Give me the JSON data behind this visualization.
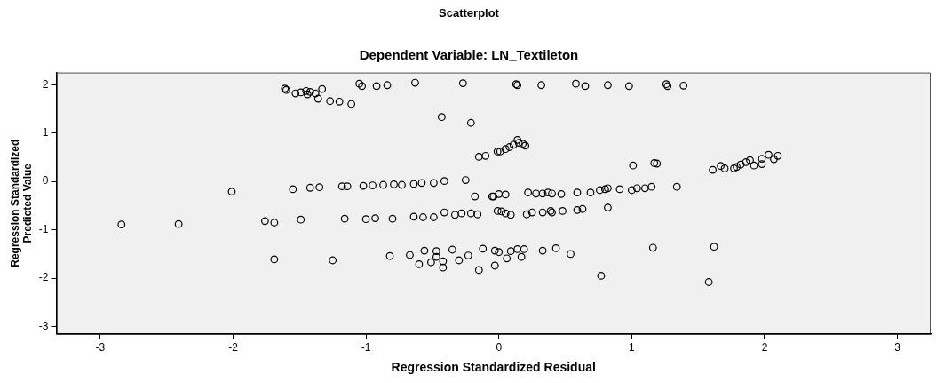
{
  "chart_data": {
    "type": "scatter",
    "title": "Scatterplot",
    "subtitle": "Dependent Variable: LN_Textileton",
    "xlabel": "Regression Standardized Residual",
    "ylabel": "Regression Standardized Predicted Value",
    "xlim": [
      -3.33,
      3.25
    ],
    "ylim": [
      -3.15,
      2.25
    ],
    "xticks": [
      -3,
      -2,
      -1,
      0,
      1,
      2,
      3
    ],
    "yticks": [
      -3,
      -2,
      -1,
      0,
      1,
      2
    ],
    "grid": false,
    "legend": false,
    "marker": "circle",
    "series": [
      {
        "color": "#000000",
        "x": [
          -1.61,
          -1.6,
          -1.53,
          -1.49,
          -1.45,
          -1.44,
          -1.42,
          -1.38,
          -1.36,
          -1.33,
          -1.27,
          -1.2,
          -1.11,
          -1.05,
          -1.03,
          -0.92,
          -0.84,
          -0.63,
          -0.27,
          -0.43,
          -0.21,
          -0.01,
          -0.15,
          -0.1,
          -2.01,
          -1.55,
          -1.42,
          -1.35,
          -1.18,
          -1.14,
          -1.02,
          -0.95,
          -0.87,
          -0.79,
          -0.73,
          -0.64,
          -0.58,
          -0.49,
          -0.41,
          -0.25,
          -0.18,
          -0.04,
          -2.84,
          -2.41,
          -1.76,
          -1.69,
          -1.49,
          -1.16,
          -1.0,
          -0.93,
          -0.8,
          -0.64,
          -0.57,
          -0.49,
          -0.41,
          -0.33,
          -0.28,
          -0.21,
          -0.16,
          -0.01,
          -1.69,
          -1.25,
          -0.82,
          -0.67,
          -0.56,
          -0.47,
          -0.47,
          -0.42,
          -0.42,
          -0.51,
          -0.6,
          -0.35,
          -0.3,
          -0.23,
          -0.12,
          -0.15,
          -0.03,
          -0.03,
          0.14,
          0.13,
          0.32,
          0.58,
          0.65,
          0.82,
          0.98,
          1.27,
          1.26,
          1.39,
          0.01,
          0.05,
          0.08,
          0.11,
          0.15,
          0.18,
          0.2,
          0.14,
          1.01,
          1.17,
          1.19,
          1.61,
          1.67,
          1.7,
          1.77,
          1.82,
          1.86,
          1.89,
          1.92,
          1.98,
          1.98,
          2.03,
          2.07,
          2.1,
          1.79,
          -0.05,
          0.0,
          0.05,
          0.22,
          0.28,
          0.33,
          0.37,
          0.4,
          0.47,
          0.59,
          0.69,
          0.76,
          0.8,
          0.82,
          0.91,
          1.0,
          1.04,
          1.1,
          1.15,
          1.34,
          0.02,
          0.05,
          0.09,
          0.21,
          0.25,
          0.33,
          0.39,
          0.4,
          0.48,
          0.59,
          0.63,
          0.82,
          0.0,
          0.06,
          0.09,
          0.14,
          0.17,
          0.19,
          0.33,
          0.43,
          0.54,
          0.77,
          1.16,
          1.62,
          1.58
        ],
        "values": [
          1.92,
          1.89,
          1.82,
          1.84,
          1.87,
          1.8,
          1.85,
          1.82,
          1.71,
          1.91,
          1.66,
          1.65,
          1.6,
          2.02,
          1.97,
          1.97,
          1.99,
          2.04,
          2.03,
          1.33,
          1.21,
          0.62,
          0.51,
          0.53,
          -0.21,
          -0.16,
          -0.13,
          -0.12,
          -0.1,
          -0.1,
          -0.09,
          -0.08,
          -0.07,
          -0.06,
          -0.07,
          -0.05,
          -0.03,
          -0.03,
          0.01,
          0.03,
          -0.31,
          -0.31,
          -0.89,
          -0.88,
          -0.82,
          -0.85,
          -0.79,
          -0.77,
          -0.78,
          -0.76,
          -0.77,
          -0.73,
          -0.74,
          -0.74,
          -0.64,
          -0.69,
          -0.66,
          -0.66,
          -0.68,
          -0.61,
          -1.61,
          -1.63,
          -1.54,
          -1.52,
          -1.43,
          -1.44,
          -1.56,
          -1.65,
          -1.78,
          -1.67,
          -1.71,
          -1.41,
          -1.63,
          -1.53,
          -1.39,
          -1.83,
          -1.74,
          -1.43,
          1.99,
          2.01,
          1.99,
          2.02,
          1.97,
          1.99,
          1.97,
          1.97,
          2.01,
          1.98,
          0.62,
          0.67,
          0.71,
          0.76,
          0.8,
          0.78,
          0.74,
          0.86,
          0.33,
          0.38,
          0.37,
          0.24,
          0.32,
          0.27,
          0.27,
          0.35,
          0.4,
          0.44,
          0.33,
          0.36,
          0.47,
          0.55,
          0.46,
          0.53,
          0.3,
          -0.31,
          -0.26,
          -0.27,
          -0.23,
          -0.25,
          -0.25,
          -0.23,
          -0.25,
          -0.26,
          -0.23,
          -0.23,
          -0.18,
          -0.16,
          -0.14,
          -0.16,
          -0.18,
          -0.14,
          -0.14,
          -0.11,
          -0.11,
          -0.62,
          -0.66,
          -0.69,
          -0.68,
          -0.64,
          -0.64,
          -0.61,
          -0.64,
          -0.61,
          -0.59,
          -0.57,
          -0.54,
          -1.46,
          -1.59,
          -1.44,
          -1.4,
          -1.56,
          -1.4,
          -1.43,
          -1.38,
          -1.5,
          -1.95,
          -1.37,
          -1.35,
          -2.08
        ]
      }
    ]
  }
}
